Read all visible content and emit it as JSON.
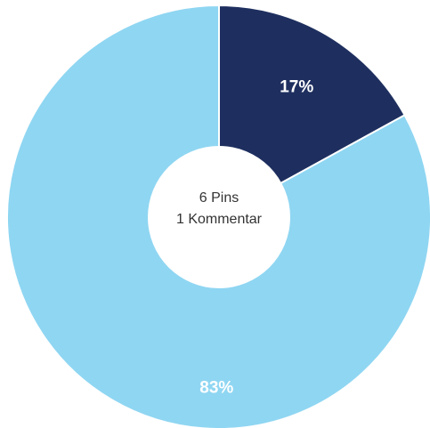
{
  "chart_data": {
    "type": "pie",
    "variant": "donut",
    "categories": [
      "",
      ""
    ],
    "values": [
      17,
      83
    ],
    "labels": [
      "17%",
      "83%"
    ],
    "colors": [
      "#1e2f5f",
      "#8fd6f2"
    ],
    "center_text": [
      "6 Pins",
      "1 Kommentar"
    ],
    "start": "12 o'clock",
    "direction": "clockwise"
  }
}
